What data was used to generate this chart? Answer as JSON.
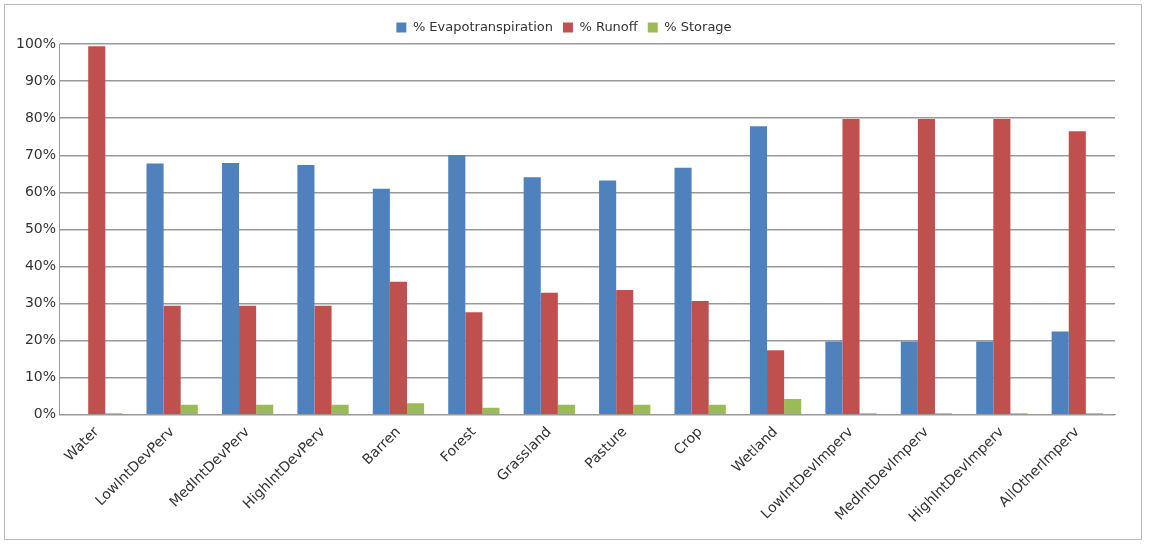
{
  "chart_data": {
    "type": "bar",
    "categories": [
      "Water",
      "LowIntDevPerv",
      "MedIntDevPerv",
      "HighIntDevPerv",
      "Barren",
      "Forest",
      "Grassland",
      "Pasture",
      "Crop",
      "Wetland",
      "LowIntDevImperv",
      "MedIntDevImperv",
      "HighIntDevImperv",
      "AllOtherImperv"
    ],
    "series": [
      {
        "name": "% Evapotranspiration",
        "color": "#4f81bd",
        "values": [
          0,
          67.8,
          67.9,
          67.4,
          61.0,
          70.1,
          64.1,
          63.2,
          66.6,
          77.8,
          19.8,
          19.8,
          19.8,
          22.5
        ]
      },
      {
        "name": "% Runoff",
        "color": "#c0504d",
        "values": [
          99.4,
          29.4,
          29.4,
          29.4,
          35.9,
          27.7,
          32.9,
          33.7,
          30.7,
          17.4,
          79.8,
          79.8,
          79.8,
          76.5
        ]
      },
      {
        "name": "% Storage",
        "color": "#9bbb59",
        "values": [
          0.4,
          2.7,
          2.7,
          2.7,
          3.1,
          1.9,
          2.7,
          2.7,
          2.7,
          4.3,
          0.4,
          0.4,
          0.4,
          0.4
        ]
      }
    ],
    "ylim": [
      0,
      100
    ],
    "yticks": [
      {
        "value": 0,
        "label": "0%"
      },
      {
        "value": 10,
        "label": "10%"
      },
      {
        "value": 20,
        "label": "20%"
      },
      {
        "value": 30,
        "label": "30%"
      },
      {
        "value": 40,
        "label": "40%"
      },
      {
        "value": 50,
        "label": "50%"
      },
      {
        "value": 60,
        "label": "60%"
      },
      {
        "value": 70,
        "label": "70%"
      },
      {
        "value": 80,
        "label": "80%"
      },
      {
        "value": 90,
        "label": "90%"
      },
      {
        "value": 100,
        "label": "100%"
      }
    ],
    "grid": "y",
    "legend": "top"
  }
}
